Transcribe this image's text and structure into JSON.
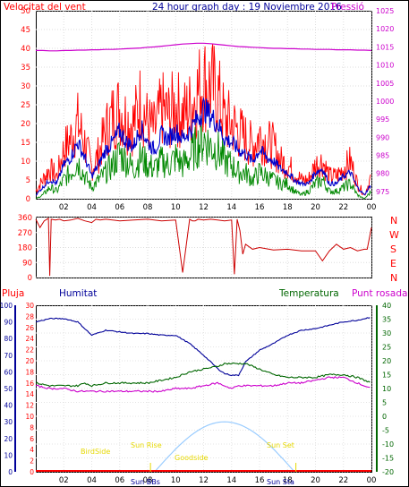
{
  "header": {
    "left_label": "Velocitat del vent",
    "title": "24 hour graph day : 19 Noviembre 2016",
    "right_label": "Pressió"
  },
  "wind_dir_labels": [
    "N",
    "W",
    "S",
    "E",
    "N"
  ],
  "lower_labels": {
    "pluja": "Pluja",
    "humitat": "Humitat",
    "temperatura": "Temperatura",
    "punt_rosada": "Punt rosada"
  },
  "sun_labels": {
    "birdside": "BirdSide",
    "sun_rise": "Sun Rise",
    "sun_bbs": "Sun BBs",
    "sun_set": "Sun Set",
    "sun_sta": "Sun Sta",
    "goodside": "Goodside"
  },
  "colors": {
    "wind_gust": "#ff0000",
    "wind_avg": "#0000cc",
    "wind_min": "#008800",
    "pressure": "#cc00cc",
    "humidity": "#000099",
    "temperature": "#006600",
    "dewpoint": "#cc00cc",
    "rain": "#ff0000",
    "solar": "#99ccff",
    "sun_labels": "#e6d800"
  },
  "chart_data": [
    {
      "type": "line",
      "name": "wind-speed-and-pressure",
      "x_ticks": [
        "02",
        "04",
        "06",
        "08",
        "10",
        "12",
        "14",
        "16",
        "18",
        "20",
        "22",
        "00"
      ],
      "y_left_ticks": [
        0,
        5,
        10,
        15,
        20,
        25,
        30,
        35,
        40,
        45,
        50
      ],
      "y_left_range": [
        0,
        50
      ],
      "y_right_ticks": [
        975,
        980,
        985,
        990,
        995,
        1000,
        1005,
        1010,
        1015,
        1020,
        1025
      ],
      "y_right_range": [
        973,
        1025
      ],
      "hours": [
        0,
        0.5,
        1,
        1.5,
        2,
        2.5,
        3,
        3.5,
        4,
        4.5,
        5,
        5.5,
        6,
        6.5,
        7,
        7.5,
        8,
        8.5,
        9,
        9.5,
        10,
        10.5,
        11,
        11.5,
        12,
        12.5,
        13,
        13.5,
        14,
        14.5,
        15,
        15.5,
        16,
        16.5,
        17,
        17.5,
        18,
        18.5,
        19,
        19.5,
        20,
        20.5,
        21,
        21.5,
        22,
        22.5,
        23,
        23.5,
        24
      ],
      "series": [
        {
          "key": "gust",
          "values": [
            2,
            5,
            8,
            6,
            13,
            16,
            20,
            15,
            8,
            12,
            18,
            22,
            24,
            21,
            20,
            26,
            20,
            18,
            24,
            22,
            25,
            22,
            24,
            28,
            31,
            30,
            28,
            21,
            20,
            18,
            16,
            14,
            17,
            15,
            14,
            10,
            9,
            7,
            5,
            5,
            9,
            10,
            6,
            6,
            8,
            10,
            4,
            1,
            6
          ]
        },
        {
          "key": "avg",
          "values": [
            1,
            3,
            5,
            4,
            9,
            11,
            15,
            11,
            6,
            9,
            13,
            15,
            18,
            15,
            14,
            19,
            15,
            13,
            17,
            16,
            18,
            16,
            18,
            21,
            24,
            22,
            20,
            16,
            15,
            13,
            12,
            10,
            13,
            11,
            10,
            8,
            7,
            5,
            4,
            4,
            7,
            8,
            4,
            4,
            6,
            7,
            3,
            1,
            4
          ]
        },
        {
          "key": "min",
          "values": [
            0,
            1,
            3,
            2,
            5,
            7,
            10,
            6,
            3,
            5,
            7,
            9,
            12,
            10,
            8,
            11,
            9,
            8,
            10,
            9,
            11,
            9,
            11,
            14,
            16,
            14,
            13,
            10,
            9,
            7,
            7,
            5,
            7,
            6,
            5,
            4,
            4,
            2,
            1,
            2,
            4,
            5,
            2,
            2,
            3,
            4,
            1,
            0,
            2
          ]
        },
        {
          "key": "pressure",
          "values": [
            1014.0,
            1014.0,
            1013.9,
            1013.9,
            1014.0,
            1014.0,
            1014.1,
            1014.1,
            1014.2,
            1014.2,
            1014.3,
            1014.3,
            1014.4,
            1014.5,
            1014.6,
            1014.7,
            1014.9,
            1015.0,
            1015.2,
            1015.4,
            1015.6,
            1015.8,
            1015.9,
            1016.0,
            1016.0,
            1015.9,
            1015.7,
            1015.5,
            1015.3,
            1015.1,
            1015.0,
            1014.9,
            1014.8,
            1014.7,
            1014.6,
            1014.6,
            1014.5,
            1014.5,
            1014.4,
            1014.4,
            1014.3,
            1014.3,
            1014.3,
            1014.2,
            1014.2,
            1014.2,
            1014.1,
            1014.1,
            1014.0
          ]
        }
      ]
    },
    {
      "type": "line",
      "name": "wind-direction",
      "y_ticks": [
        0,
        90,
        180,
        270,
        360
      ],
      "y_range": [
        0,
        360
      ],
      "hours": [
        0,
        0.3,
        0.6,
        0.9,
        1.0,
        1.1,
        1.4,
        1.7,
        2,
        2.5,
        3,
        3.5,
        4,
        4.3,
        4.6,
        5,
        6,
        7,
        8,
        9,
        10,
        10.5,
        11,
        11.2,
        11.4,
        11.6,
        12,
        12.5,
        13,
        13.5,
        14,
        14.2,
        14.4,
        14.6,
        14.8,
        15,
        15.5,
        16,
        17,
        18,
        19,
        20,
        20.5,
        21,
        21.5,
        22,
        22.5,
        23,
        23.5,
        23.7,
        24
      ],
      "values": [
        350,
        300,
        340,
        355,
        10,
        350,
        345,
        350,
        340,
        345,
        355,
        340,
        330,
        350,
        345,
        350,
        340,
        345,
        350,
        340,
        345,
        30,
        350,
        340,
        340,
        350,
        345,
        350,
        345,
        340,
        345,
        20,
        350,
        280,
        140,
        200,
        170,
        180,
        165,
        170,
        160,
        160,
        100,
        160,
        200,
        170,
        180,
        160,
        170,
        170,
        300
      ]
    },
    {
      "type": "line",
      "name": "temperature-humidity-rain-solar",
      "left_rain_ticks": [
        0,
        2,
        4,
        6,
        8,
        10,
        12,
        14,
        16,
        18,
        20,
        22,
        24,
        26,
        28,
        30
      ],
      "left_hum_ticks": [
        0,
        10,
        20,
        30,
        40,
        50,
        60,
        70,
        80,
        90,
        100
      ],
      "right_temp_ticks": [
        -20,
        -15,
        -10,
        -5,
        0,
        5,
        10,
        15,
        20,
        25,
        30,
        35,
        40
      ],
      "x_ticks": [
        "02",
        "04",
        "06",
        "08",
        "10",
        "12",
        "14",
        "16",
        "18",
        "20",
        "22",
        "00"
      ],
      "hours": [
        0,
        1,
        2,
        3,
        3.5,
        4,
        5,
        6,
        7,
        8,
        9,
        10,
        11,
        12,
        13,
        13.5,
        14,
        14.5,
        15,
        16,
        17,
        18,
        19,
        20,
        21,
        22,
        23,
        24
      ],
      "series": [
        {
          "key": "humidity",
          "values": [
            90,
            92,
            92,
            90,
            86,
            82,
            85,
            84,
            83,
            83,
            82,
            82,
            77,
            70,
            62,
            59,
            58,
            58,
            66,
            73,
            77,
            82,
            85,
            86,
            88,
            90,
            91,
            93
          ]
        },
        {
          "key": "temperature",
          "values": [
            12,
            11,
            11,
            11,
            12,
            11,
            12,
            12,
            12,
            12,
            13,
            14,
            16,
            17,
            18,
            19,
            19,
            19,
            19,
            17,
            15,
            14,
            14,
            14,
            15,
            15,
            14,
            12
          ]
        },
        {
          "key": "dewpoint",
          "values": [
            11,
            10,
            10,
            9,
            9,
            9,
            9,
            9,
            9,
            9,
            9,
            10,
            10,
            11,
            12,
            11,
            10,
            11,
            11,
            11,
            11,
            12,
            12,
            13,
            14,
            14,
            12,
            10
          ]
        },
        {
          "key": "rain",
          "values": [
            0,
            0,
            0,
            0,
            0,
            0,
            0,
            0,
            0,
            0,
            0,
            0,
            0,
            0,
            0,
            0,
            0,
            0,
            0,
            0,
            0,
            0,
            0,
            0,
            0,
            0,
            0,
            0
          ]
        }
      ],
      "solar": {
        "start_hour": 8.5,
        "end_hour": 18.5,
        "peak_hour": 13.8,
        "peak_pct": 100
      }
    }
  ]
}
